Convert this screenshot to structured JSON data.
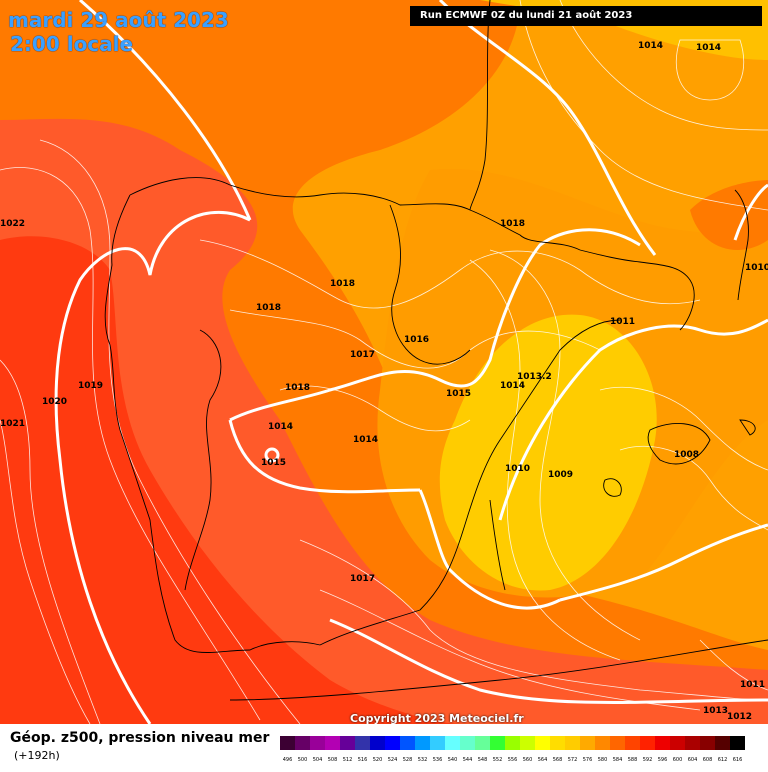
{
  "header": {
    "date": "mardi 29 août 2023",
    "time": "2:00 locale",
    "run": "Run ECMWF 0Z du lundi 21 août 2023"
  },
  "footer": {
    "field": "Géop. z500, pression niveau mer",
    "step": "(+192h)",
    "copyright": "Copyright 2023 Meteociel.fr"
  },
  "isobar_labels": [
    "1014",
    "1014",
    "1022",
    "1018",
    "1010",
    "1018",
    "1018",
    "1017",
    "1016",
    "1011",
    "1019",
    "1020",
    "1018",
    "1015",
    "1013.2",
    "1014",
    "1021",
    "1014",
    "1014",
    "1015",
    "1010",
    "1009",
    "1008",
    "1017",
    "1011",
    "1013",
    "1012"
  ],
  "legend": {
    "values": [
      "496",
      "500",
      "504",
      "508",
      "512",
      "516",
      "520",
      "524",
      "528",
      "532",
      "536",
      "540",
      "544",
      "548",
      "552",
      "556",
      "560",
      "564",
      "568",
      "572",
      "576",
      "580",
      "584",
      "588",
      "592",
      "596",
      "600",
      "604",
      "608",
      "612",
      "616"
    ],
    "colors": [
      "#3c0033",
      "#660066",
      "#990099",
      "#b300b3",
      "#660099",
      "#3333aa",
      "#0000cc",
      "#0000ff",
      "#0055ff",
      "#0099ff",
      "#33ccff",
      "#66ffff",
      "#66ffcc",
      "#66ff99",
      "#33ff33",
      "#99ff00",
      "#ccff00",
      "#ffff00",
      "#ffdd00",
      "#ffcc00",
      "#ffaa00",
      "#ff8800",
      "#ff6600",
      "#ff4400",
      "#ff2200",
      "#ee0000",
      "#cc0000",
      "#aa0000",
      "#880000",
      "#550000",
      "#000000"
    ]
  },
  "colors": {
    "z500_568": "#ffdd00",
    "z500_572": "#ffcc00",
    "z500_576": "#ffa500",
    "z500_580": "#ff8c00",
    "z500_584": "#ff6a00",
    "z500_588": "#ff4a20",
    "z500_592": "#ff2a00"
  }
}
